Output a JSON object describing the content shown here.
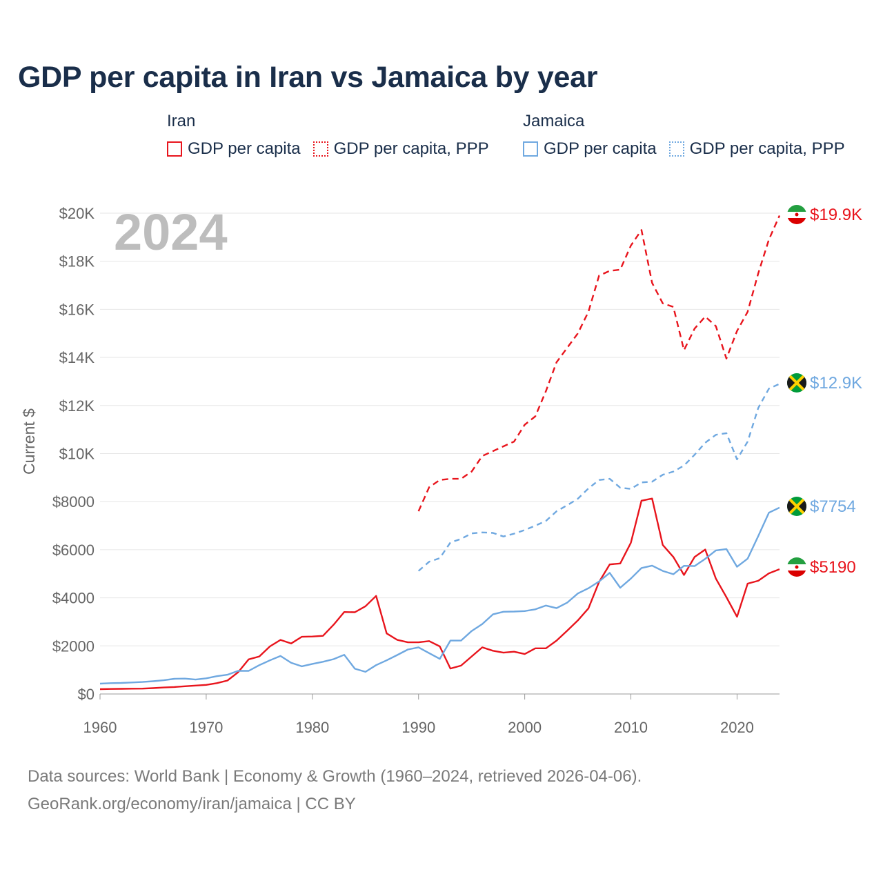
{
  "title": "GDP per capita in Iran vs Jamaica by year",
  "colors": {
    "iran": "#e8141c",
    "jamaica": "#6fa8e0",
    "text": "#1a2e4a",
    "axis": "#666666",
    "grid": "#e6e6e6"
  },
  "legend": {
    "iran": {
      "heading": "Iran",
      "gdp": "GDP per capita",
      "ppp": "GDP per capita, PPP"
    },
    "jamaica": {
      "heading": "Jamaica",
      "gdp": "GDP per capita",
      "ppp": "GDP per capita, PPP"
    }
  },
  "footer": {
    "line1": "Data sources: World Bank | Economy & Growth (1960–2024, retrieved 2026-04-06).",
    "line2": "GeoRank.org/economy/iran/jamaica | CC BY"
  },
  "chart_data": {
    "type": "line",
    "title": "GDP per capita in Iran vs Jamaica by year",
    "year_watermark": "2024",
    "ylabel": "Current $",
    "xlabel": "",
    "xlim": [
      1960,
      2024
    ],
    "ylim": [
      0,
      20000
    ],
    "x_ticks": [
      1960,
      1970,
      1980,
      1990,
      2000,
      2010,
      2020
    ],
    "x_tick_labels": [
      "1960",
      "1970",
      "1980",
      "1990",
      "2000",
      "2010",
      "2020"
    ],
    "y_ticks": [
      0,
      2000,
      4000,
      6000,
      8000,
      10000,
      12000,
      14000,
      16000,
      18000,
      20000
    ],
    "y_tick_labels": [
      "$0",
      "$2000",
      "$4000",
      "$6000",
      "$8000",
      "$10K",
      "$12K",
      "$14K",
      "$16K",
      "$18K",
      "$20K"
    ],
    "grid": true,
    "legend_position": "top",
    "series": [
      {
        "name": "Iran GDP per capita",
        "country": "Iran",
        "color": "#e8141c",
        "dash": "solid",
        "start_year": 1960,
        "end_label": "$5190",
        "values": [
          200,
          210,
          215,
          220,
          225,
          245,
          270,
          290,
          320,
          350,
          380,
          450,
          560,
          900,
          1440,
          1560,
          1980,
          2250,
          2100,
          2380,
          2390,
          2420,
          2880,
          3410,
          3400,
          3650,
          4080,
          2520,
          2250,
          2150,
          2150,
          2200,
          1980,
          1060,
          1180,
          1560,
          1940,
          1800,
          1720,
          1760,
          1660,
          1900,
          1900,
          2220,
          2630,
          3060,
          3560,
          4660,
          5390,
          5430,
          6290,
          8040,
          8130,
          6200,
          5700,
          4950,
          5700,
          6010,
          4800,
          4030,
          3210,
          4590,
          4710,
          5020,
          5190
        ]
      },
      {
        "name": "Iran GDP per capita, PPP",
        "country": "Iran",
        "color": "#e8141c",
        "dash": "dashed",
        "start_year": 1990,
        "end_label": "$19.9K",
        "values": [
          7600,
          8600,
          8900,
          8950,
          8950,
          9250,
          9900,
          10100,
          10300,
          10500,
          11200,
          11550,
          12600,
          13800,
          14400,
          15000,
          15900,
          17400,
          17600,
          17650,
          18650,
          19300,
          17100,
          16250,
          16100,
          14300,
          15200,
          15700,
          15300,
          13950,
          15100,
          15900,
          17500,
          18900,
          19900
        ]
      },
      {
        "name": "Jamaica GDP per capita",
        "country": "Jamaica",
        "color": "#6fa8e0",
        "dash": "solid",
        "start_year": 1960,
        "end_label": "$7754",
        "values": [
          430,
          450,
          460,
          480,
          500,
          530,
          570,
          630,
          640,
          600,
          650,
          740,
          800,
          960,
          960,
          1200,
          1400,
          1580,
          1300,
          1150,
          1250,
          1340,
          1450,
          1630,
          1050,
          920,
          1200,
          1400,
          1620,
          1850,
          1940,
          1700,
          1460,
          2220,
          2220,
          2620,
          2910,
          3310,
          3420,
          3430,
          3450,
          3520,
          3680,
          3570,
          3800,
          4180,
          4400,
          4680,
          5040,
          4420,
          4800,
          5240,
          5340,
          5120,
          4980,
          5330,
          5320,
          5620,
          5970,
          6030,
          5290,
          5630,
          6570,
          7540,
          7754
        ]
      },
      {
        "name": "Jamaica GDP per capita, PPP",
        "country": "Jamaica",
        "color": "#6fa8e0",
        "dash": "dotted",
        "start_year": 1990,
        "end_label": "$12.9K",
        "values": [
          5120,
          5500,
          5650,
          6300,
          6450,
          6680,
          6720,
          6700,
          6550,
          6670,
          6820,
          7000,
          7200,
          7600,
          7850,
          8120,
          8550,
          8900,
          8950,
          8580,
          8530,
          8800,
          8830,
          9120,
          9250,
          9500,
          9950,
          10450,
          10780,
          10850,
          9760,
          10500,
          11900,
          12700,
          12900
        ]
      }
    ]
  }
}
